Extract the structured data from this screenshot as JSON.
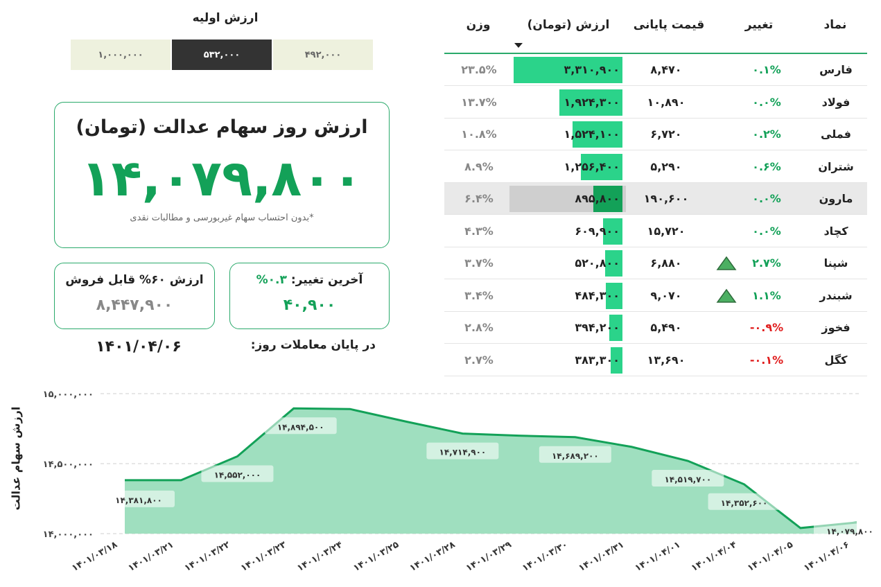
{
  "initial_value": {
    "title": "ارزش اولیه",
    "options": [
      "۱,۰۰۰,۰۰۰",
      "۵۳۲,۰۰۰",
      "۴۹۲,۰۰۰"
    ],
    "selected": "۵۳۲,۰۰۰"
  },
  "main_card": {
    "title": "ارزش روز سهام عدالت (تومان)",
    "value": "۱۴,۰۷۹,۸۰۰",
    "note": "*بدون احتساب سهام غیربورسی و مطالبات نقدی"
  },
  "sellable_card": {
    "title": "ارزش ۶۰% قابل فروش",
    "value": "۸,۴۴۷,۹۰۰"
  },
  "last_change_card": {
    "title": "آخرین تغییر:",
    "percent": "۰.۳%",
    "value": "۴۰,۹۰۰"
  },
  "end_of_day": {
    "label": "در پایان معاملات روز:",
    "date": "۱۴۰۱/۰۴/۰۶"
  },
  "table": {
    "headers": {
      "symbol": "نماد",
      "change": "تغییر",
      "close": "قیمت پایانی",
      "value": "ارزش (تومان)",
      "weight": "وزن"
    },
    "rows": [
      {
        "symbol": "فارس",
        "change": "۰.۱%",
        "dir": "pos",
        "close": "۸,۴۷۰",
        "value": "۳,۳۱۰,۹۰۰",
        "weight": "۲۳.۵%",
        "share": 1.0,
        "arrow": false,
        "highlight": false
      },
      {
        "symbol": "فولاد",
        "change": "۰.۰%",
        "dir": "pos",
        "close": "۱۰,۸۹۰",
        "value": "۱,۹۲۴,۳۰۰",
        "weight": "۱۳.۷%",
        "share": 0.58,
        "arrow": false,
        "highlight": false
      },
      {
        "symbol": "فملی",
        "change": "۰.۲%",
        "dir": "pos",
        "close": "۶,۷۲۰",
        "value": "۱,۵۲۴,۱۰۰",
        "weight": "۱۰.۸%",
        "share": 0.46,
        "arrow": false,
        "highlight": false
      },
      {
        "symbol": "شتران",
        "change": "۰.۶%",
        "dir": "pos",
        "close": "۵,۲۹۰",
        "value": "۱,۲۵۶,۴۰۰",
        "weight": "۸.۹%",
        "share": 0.38,
        "arrow": false,
        "highlight": false
      },
      {
        "symbol": "مارون",
        "change": "۰.۰%",
        "dir": "pos",
        "close": "۱۹۰,۶۰۰",
        "value": "۸۹۵,۸۰۰",
        "weight": "۶.۴%",
        "share": 0.27,
        "arrow": false,
        "highlight": true
      },
      {
        "symbol": "کچاد",
        "change": "۰.۰%",
        "dir": "pos",
        "close": "۱۵,۷۲۰",
        "value": "۶۰۹,۹۰۰",
        "weight": "۴.۳%",
        "share": 0.18,
        "arrow": false,
        "highlight": false
      },
      {
        "symbol": "شپنا",
        "change": "۲.۷%",
        "dir": "pos",
        "close": "۶,۸۸۰",
        "value": "۵۲۰,۸۰۰",
        "weight": "۳.۷%",
        "share": 0.16,
        "arrow": true,
        "highlight": false
      },
      {
        "symbol": "شبندر",
        "change": "۱.۱%",
        "dir": "pos",
        "close": "۹,۰۷۰",
        "value": "۴۸۴,۳۰۰",
        "weight": "۳.۴%",
        "share": 0.15,
        "arrow": true,
        "highlight": false
      },
      {
        "symbol": "فخوز",
        "change": "-۰.۹%",
        "dir": "neg",
        "close": "۵,۴۹۰",
        "value": "۳۹۴,۲۰۰",
        "weight": "۲.۸%",
        "share": 0.12,
        "arrow": false,
        "highlight": false
      },
      {
        "symbol": "کگل",
        "change": "-۰.۱%",
        "dir": "neg",
        "close": "۱۳,۶۹۰",
        "value": "۳۸۳,۳۰۰",
        "weight": "۲.۷%",
        "share": 0.11,
        "arrow": false,
        "highlight": false
      }
    ]
  },
  "colors": {
    "accent": "#13a158",
    "bar": "#2bd38a",
    "area": "#9fdfbf",
    "line": "#13a158",
    "negative": "#e01c1c"
  },
  "chart_data": {
    "type": "area",
    "ylabel": "ارزش سهام عدالت",
    "ylim": [
      14000000,
      15000000
    ],
    "yticks": [
      "۱۴,۰۰۰,۰۰۰",
      "۱۴,۵۰۰,۰۰۰",
      "۱۵,۰۰۰,۰۰۰"
    ],
    "ytick_values": [
      14000000,
      14500000,
      15000000
    ],
    "x": [
      "۱۴۰۱/۰۳/۱۸",
      "۱۴۰۱/۰۳/۲۱",
      "۱۴۰۱/۰۳/۲۲",
      "۱۴۰۱/۰۳/۲۳",
      "۱۴۰۱/۰۳/۲۴",
      "۱۴۰۱/۰۳/۲۵",
      "۱۴۰۱/۰۳/۲۸",
      "۱۴۰۱/۰۳/۲۹",
      "۱۴۰۱/۰۳/۳۰",
      "۱۴۰۱/۰۳/۳۱",
      "۱۴۰۱/۰۴/۰۱",
      "۱۴۰۱/۰۴/۰۴",
      "۱۴۰۱/۰۴/۰۵",
      "۱۴۰۱/۰۴/۰۶"
    ],
    "values": [
      14381800,
      14381800,
      14552000,
      14894500,
      14890000,
      14800000,
      14714900,
      14700000,
      14689200,
      14620000,
      14519700,
      14352600,
      14040000,
      14079800
    ],
    "labels": [
      "۱۴,۳۸۱,۸۰۰",
      null,
      "۱۴,۵۵۲,۰۰۰",
      "۱۴,۸۹۴,۵۰۰",
      null,
      null,
      "۱۴,۷۱۴,۹۰۰",
      null,
      "۱۴,۶۸۹,۲۰۰",
      null,
      "۱۴,۵۱۹,۷۰۰",
      "۱۴,۳۵۲,۶۰۰",
      null,
      "۱۴,۰۷۹,۸۰۰"
    ]
  }
}
